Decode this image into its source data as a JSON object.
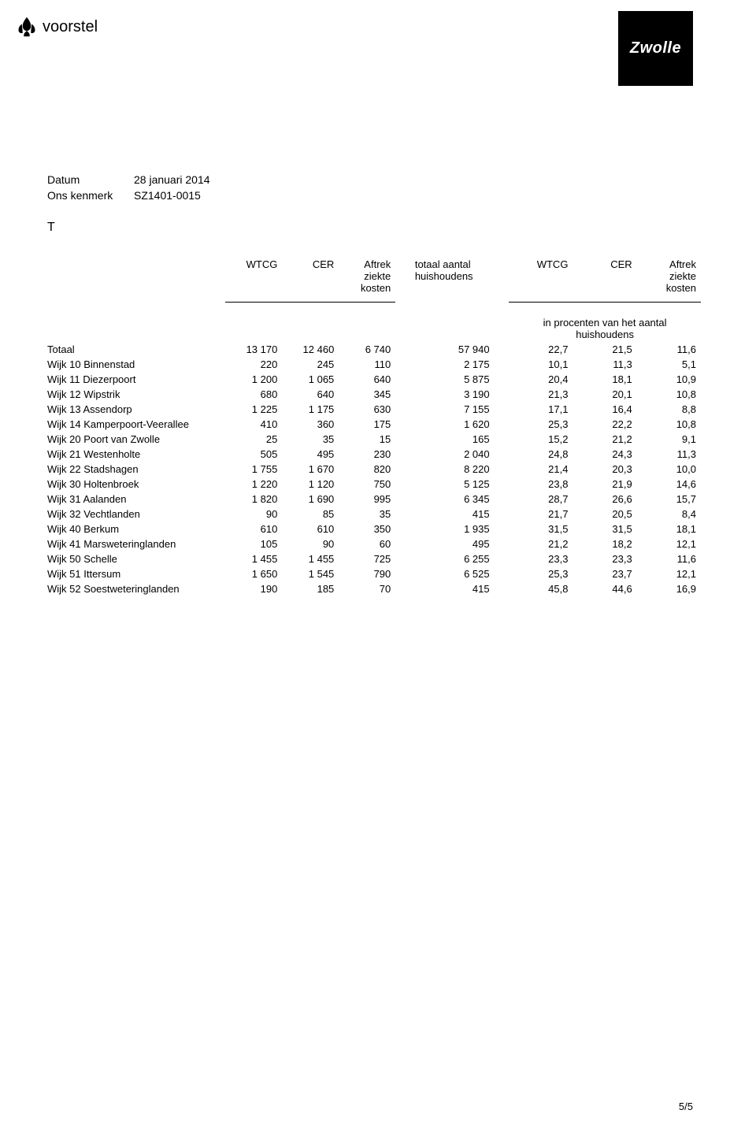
{
  "header": {
    "voorstel": "voorstel",
    "brand": "Zwolle"
  },
  "meta": {
    "datum_label": "Datum",
    "datum_value": "28 januari 2014",
    "kenmerk_label": "Ons kenmerk",
    "kenmerk_value": "SZ1401-0015"
  },
  "section_letter": "T",
  "table": {
    "col_headers": {
      "wtcg1": "WTCG",
      "cer1": "CER",
      "aftrek1": "Aftrek\nziekte\nkosten",
      "totaal": "totaal aantal\nhuishoudens",
      "wtcg2": "WTCG",
      "cer2": "CER",
      "aftrek2": "Aftrek\nziekte\nkosten"
    },
    "sub_header": "in procenten van het aantal\nhuishoudens",
    "rows": [
      {
        "name": "Totaal",
        "v": [
          "13 170",
          "12 460",
          "6 740",
          "57 940",
          "22,7",
          "21,5",
          "11,6"
        ]
      },
      {
        "name": "Wijk 10 Binnenstad",
        "v": [
          "220",
          "245",
          "110",
          "2 175",
          "10,1",
          "11,3",
          "5,1"
        ]
      },
      {
        "name": "Wijk 11 Diezerpoort",
        "v": [
          "1 200",
          "1 065",
          "640",
          "5 875",
          "20,4",
          "18,1",
          "10,9"
        ]
      },
      {
        "name": "Wijk 12 Wipstrik",
        "v": [
          "680",
          "640",
          "345",
          "3 190",
          "21,3",
          "20,1",
          "10,8"
        ]
      },
      {
        "name": "Wijk 13 Assendorp",
        "v": [
          "1 225",
          "1 175",
          "630",
          "7 155",
          "17,1",
          "16,4",
          "8,8"
        ]
      },
      {
        "name": "Wijk 14 Kamperpoort-Veerallee",
        "v": [
          "410",
          "360",
          "175",
          "1 620",
          "25,3",
          "22,2",
          "10,8"
        ]
      },
      {
        "name": "Wijk 20 Poort van Zwolle",
        "v": [
          "25",
          "35",
          "15",
          "165",
          "15,2",
          "21,2",
          "9,1"
        ]
      },
      {
        "name": "Wijk 21 Westenholte",
        "v": [
          "505",
          "495",
          "230",
          "2 040",
          "24,8",
          "24,3",
          "11,3"
        ]
      },
      {
        "name": "Wijk 22 Stadshagen",
        "v": [
          "1 755",
          "1 670",
          "820",
          "8 220",
          "21,4",
          "20,3",
          "10,0"
        ]
      },
      {
        "name": "Wijk 30 Holtenbroek",
        "v": [
          "1 220",
          "1 120",
          "750",
          "5 125",
          "23,8",
          "21,9",
          "14,6"
        ]
      },
      {
        "name": "Wijk 31 Aalanden",
        "v": [
          "1 820",
          "1 690",
          "995",
          "6 345",
          "28,7",
          "26,6",
          "15,7"
        ]
      },
      {
        "name": "Wijk 32 Vechtlanden",
        "v": [
          "90",
          "85",
          "35",
          "415",
          "21,7",
          "20,5",
          "8,4"
        ]
      },
      {
        "name": "Wijk 40 Berkum",
        "v": [
          "610",
          "610",
          "350",
          "1 935",
          "31,5",
          "31,5",
          "18,1"
        ]
      },
      {
        "name": "Wijk 41 Marsweteringlanden",
        "v": [
          "105",
          "90",
          "60",
          "495",
          "21,2",
          "18,2",
          "12,1"
        ]
      },
      {
        "name": "Wijk 50 Schelle",
        "v": [
          "1 455",
          "1 455",
          "725",
          "6 255",
          "23,3",
          "23,3",
          "11,6"
        ]
      },
      {
        "name": "Wijk 51 Ittersum",
        "v": [
          "1 650",
          "1 545",
          "790",
          "6 525",
          "25,3",
          "23,7",
          "12,1"
        ]
      },
      {
        "name": "Wijk 52 Soestweteringlanden",
        "v": [
          "190",
          "185",
          "70",
          "415",
          "45,8",
          "44,6",
          "16,9"
        ]
      }
    ]
  },
  "page_num": "5/5"
}
